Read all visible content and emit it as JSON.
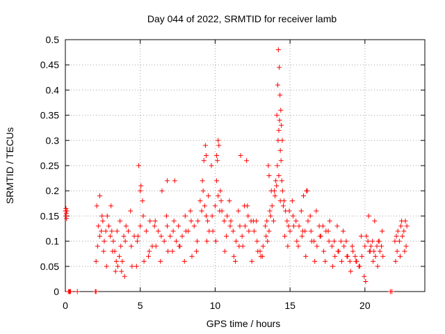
{
  "chart_data": {
    "type": "scatter",
    "title": "Day 044 of 2022, SRMTID for receiver lamb",
    "xlabel": "GPS time / hours",
    "ylabel": "SRMTID / TECUs",
    "xlim": [
      0,
      24
    ],
    "ylim": [
      0,
      0.5
    ],
    "xticks": [
      0,
      5,
      10,
      15,
      20
    ],
    "xtick_labels": [
      "0",
      "5",
      "10",
      "15",
      "20"
    ],
    "yticks": [
      0,
      0.05,
      0.1,
      0.15,
      0.2,
      0.25,
      0.3,
      0.35,
      0.4,
      0.45,
      0.5
    ],
    "ytick_labels": [
      "0",
      "0.05",
      "0.1",
      "0.15",
      "0.2",
      "0.25",
      "0.3",
      "0.35",
      "0.4",
      "0.45",
      "0.5"
    ],
    "grid": true,
    "legend": "none",
    "marker": "+",
    "color": "#ff0000",
    "series": [
      {
        "name": "SRMTID",
        "x": [
          0.0,
          0.02,
          0.04,
          0.06,
          0.08,
          0.1,
          2.1,
          2.2,
          2.3,
          2.4,
          2.5,
          2.6,
          2.7,
          2.8,
          2.9,
          3.0,
          3.1,
          3.2,
          3.3,
          3.4,
          3.5,
          3.6,
          3.7,
          3.8,
          3.9,
          4.0,
          4.2,
          4.4,
          4.6,
          4.8,
          5.0,
          5.2,
          5.4,
          5.6,
          5.8,
          6.0,
          6.2,
          6.4,
          6.6,
          6.8,
          7.0,
          7.2,
          7.4,
          7.6,
          7.8,
          8.0,
          8.2,
          8.4,
          8.6,
          8.8,
          9.0,
          9.1,
          9.2,
          9.3,
          9.4,
          9.5,
          9.6,
          9.8,
          10.0,
          10.1,
          10.2,
          10.3,
          10.4,
          10.6,
          10.8,
          11.0,
          11.2,
          11.4,
          11.6,
          11.8,
          12.0,
          12.2,
          12.4,
          12.6,
          12.8,
          13.0,
          13.2,
          13.4,
          13.5,
          13.6,
          13.7,
          13.8,
          13.9,
          14.0,
          14.1,
          14.15,
          14.2,
          14.25,
          14.3,
          14.35,
          14.4,
          14.45,
          14.5,
          14.6,
          14.7,
          14.8,
          14.9,
          15.0,
          15.2,
          15.4,
          15.6,
          15.8,
          16.0,
          16.2,
          16.4,
          16.6,
          16.8,
          17.0,
          17.2,
          17.4,
          17.6,
          17.8,
          18.0,
          18.2,
          18.4,
          18.6,
          18.8,
          19.0,
          19.2,
          19.4,
          19.6,
          19.8,
          20.0,
          20.1,
          20.2,
          20.3,
          20.4,
          20.5,
          20.6,
          20.7,
          20.8,
          20.9,
          21.0,
          21.1,
          21.2,
          22.0,
          22.1,
          22.2,
          22.3,
          22.4,
          22.5,
          22.6,
          22.7,
          22.8,
          2.05,
          2.3,
          2.55,
          3.05,
          3.35,
          3.65,
          3.95,
          4.35,
          4.75,
          5.15,
          5.55,
          5.95,
          6.35,
          6.75,
          7.15,
          7.55,
          7.95,
          8.35,
          8.75,
          9.15,
          9.45,
          9.75,
          10.05,
          10.35,
          10.65,
          10.95,
          11.25,
          11.55,
          11.85,
          12.15,
          12.45,
          12.75,
          13.05,
          13.35,
          13.65,
          13.95,
          14.25,
          14.55,
          14.85,
          15.15,
          15.45,
          15.75,
          16.05,
          16.35,
          16.65,
          16.95,
          17.25,
          17.55,
          17.85,
          18.15,
          18.45,
          18.75,
          19.05,
          19.35,
          19.65,
          19.95,
          20.25,
          20.55,
          20.85,
          21.15,
          22.05,
          22.35,
          22.65,
          2.15,
          2.45,
          2.75,
          3.15,
          3.45,
          3.75,
          4.05,
          4.45,
          4.85,
          5.25,
          5.65,
          6.05,
          6.45,
          6.85,
          7.25,
          7.65,
          8.05,
          8.45,
          8.85,
          9.25,
          9.55,
          9.85,
          10.15,
          10.45,
          10.75,
          11.05,
          11.35,
          11.65,
          11.95,
          12.25,
          12.55,
          12.85,
          13.15,
          13.45,
          13.75,
          14.05,
          14.35,
          14.65,
          14.95,
          15.25,
          15.55,
          15.85,
          16.15,
          16.45,
          16.75,
          17.05,
          17.35,
          17.65,
          17.95,
          18.25,
          18.55,
          18.85,
          19.15,
          19.45,
          19.75,
          20.05,
          20.35,
          20.65,
          20.95,
          22.15,
          22.45,
          22.75,
          9.35,
          9.4,
          10.1,
          10.2,
          10.25,
          14.12,
          14.18,
          14.22,
          14.28,
          14.33,
          14.38,
          14.42,
          14.48,
          13.55,
          13.6,
          11.7,
          12.1,
          6.8,
          7.3,
          4.9,
          5.0,
          5.05,
          16.1,
          15.9,
          0.2,
          0.25,
          0.3,
          0.35,
          0.8,
          2.0,
          2.05,
          21.7,
          21.8
        ],
        "y": [
          0.16,
          0.15,
          0.165,
          0.155,
          0.145,
          0.16,
          0.17,
          0.13,
          0.11,
          0.12,
          0.14,
          0.1,
          0.12,
          0.15,
          0.13,
          0.11,
          0.12,
          0.1,
          0.08,
          0.06,
          0.05,
          0.07,
          0.09,
          0.06,
          0.11,
          0.1,
          0.12,
          0.09,
          0.11,
          0.1,
          0.13,
          0.15,
          0.12,
          0.08,
          0.09,
          0.14,
          0.12,
          0.11,
          0.1,
          0.13,
          0.11,
          0.12,
          0.1,
          0.09,
          0.11,
          0.15,
          0.12,
          0.14,
          0.13,
          0.1,
          0.18,
          0.16,
          0.2,
          0.17,
          0.15,
          0.14,
          0.12,
          0.15,
          0.17,
          0.22,
          0.19,
          0.16,
          0.18,
          0.14,
          0.15,
          0.13,
          0.12,
          0.1,
          0.09,
          0.11,
          0.13,
          0.15,
          0.14,
          0.12,
          0.1,
          0.08,
          0.09,
          0.11,
          0.1,
          0.12,
          0.15,
          0.17,
          0.14,
          0.19,
          0.21,
          0.25,
          0.3,
          0.32,
          0.34,
          0.28,
          0.26,
          0.22,
          0.2,
          0.18,
          0.16,
          0.14,
          0.13,
          0.12,
          0.15,
          0.14,
          0.13,
          0.11,
          0.12,
          0.14,
          0.12,
          0.1,
          0.09,
          0.11,
          0.13,
          0.12,
          0.1,
          0.09,
          0.07,
          0.08,
          0.1,
          0.09,
          0.07,
          0.06,
          0.08,
          0.06,
          0.05,
          0.07,
          0.09,
          0.11,
          0.1,
          0.08,
          0.09,
          0.1,
          0.08,
          0.07,
          0.09,
          0.1,
          0.08,
          0.09,
          0.07,
          0.1,
          0.11,
          0.12,
          0.1,
          0.13,
          0.11,
          0.12,
          0.14,
          0.13,
          0.06,
          0.19,
          0.08,
          0.17,
          0.04,
          0.14,
          0.03,
          0.16,
          0.05,
          0.18,
          0.07,
          0.13,
          0.06,
          0.15,
          0.08,
          0.13,
          0.06,
          0.16,
          0.08,
          0.22,
          0.1,
          0.25,
          0.1,
          0.2,
          0.08,
          0.18,
          0.07,
          0.16,
          0.09,
          0.17,
          0.06,
          0.14,
          0.07,
          0.13,
          0.16,
          0.2,
          0.23,
          0.17,
          0.09,
          0.18,
          0.1,
          0.16,
          0.07,
          0.15,
          0.06,
          0.13,
          0.08,
          0.12,
          0.05,
          0.13,
          0.06,
          0.1,
          0.04,
          0.07,
          0.05,
          0.03,
          0.15,
          0.06,
          0.05,
          0.12,
          0.06,
          0.07,
          0.08,
          0.09,
          0.15,
          0.05,
          0.08,
          0.12,
          0.04,
          0.13,
          0.05,
          0.11,
          0.06,
          0.14,
          0.09,
          0.2,
          0.08,
          0.14,
          0.09,
          0.12,
          0.07,
          0.14,
          0.26,
          0.19,
          0.12,
          0.26,
          0.16,
          0.11,
          0.14,
          0.06,
          0.13,
          0.17,
          0.12,
          0.14,
          0.08,
          0.07,
          0.14,
          0.2,
          0.22,
          0.18,
          0.11,
          0.16,
          0.13,
          0.09,
          0.12,
          0.2,
          0.1,
          0.16,
          0.11,
          0.06,
          0.14,
          0.1,
          0.08,
          0.12,
          0.07,
          0.09,
          0.06,
          0.11,
          0.02,
          0.08,
          0.14,
          0.1,
          0.08,
          0.14,
          0.09,
          0.29,
          0.27,
          0.27,
          0.3,
          0.29,
          0.35,
          0.41,
          0.48,
          0.445,
          0.39,
          0.36,
          0.33,
          0.3,
          0.25,
          0.23,
          0.27,
          0.26,
          0.22,
          0.22,
          0.25,
          0.2,
          0.21,
          0.2,
          0.19,
          0,
          0,
          0,
          0,
          0,
          0,
          0,
          0,
          0
        ]
      }
    ]
  }
}
